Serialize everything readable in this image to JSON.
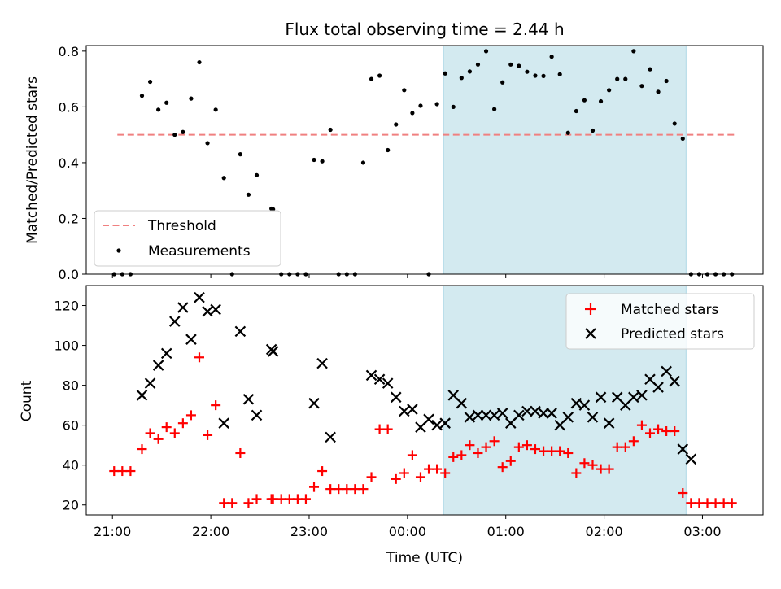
{
  "chart_data": [
    {
      "type": "scatter",
      "title": "Flux total observing time = 2.44 h",
      "xlabel": "",
      "ylabel": "Matched/Predicted stars",
      "xlim": [
        "20:44",
        "03:37"
      ],
      "ylim": [
        0,
        0.82
      ],
      "yticks": [
        0,
        0.2,
        0.4,
        0.6,
        0.8
      ],
      "ytick_labels": [
        "0.0",
        "0.2",
        "0.4",
        "0.6",
        "0.8"
      ],
      "highlight_span": [
        "00:22",
        "02:50"
      ],
      "highlight_color": "#d3eaf0",
      "threshold": {
        "name": "Threshold",
        "y": 0.5,
        "x_range": [
          "21:03",
          "03:20"
        ],
        "color": "#f08080"
      },
      "legend": {
        "position": "lower-left",
        "entries": [
          "Threshold",
          "Measurements"
        ]
      },
      "series": [
        {
          "name": "Measurements",
          "color": "#000000",
          "x": [
            "21:01",
            "21:06",
            "21:11",
            "21:18",
            "21:23",
            "21:28",
            "21:33",
            "21:38",
            "21:43",
            "21:48",
            "21:53",
            "21:58",
            "22:03",
            "22:08",
            "22:13",
            "22:18",
            "22:23",
            "22:28",
            "22:37",
            "22:38",
            "22:43",
            "22:48",
            "22:53",
            "22:58",
            "23:03",
            "23:08",
            "23:13",
            "23:18",
            "23:23",
            "23:28",
            "23:33",
            "23:38",
            "23:43",
            "23:48",
            "23:53",
            "23:58",
            "00:03",
            "00:08",
            "00:13",
            "00:18",
            "00:23",
            "00:28",
            "00:33",
            "00:38",
            "00:43",
            "00:48",
            "00:53",
            "00:58",
            "01:03",
            "01:08",
            "01:13",
            "01:18",
            "01:23",
            "01:28",
            "01:33",
            "01:38",
            "01:43",
            "01:48",
            "01:53",
            "01:58",
            "02:03",
            "02:08",
            "02:13",
            "02:18",
            "02:23",
            "02:28",
            "02:33",
            "02:38",
            "02:43",
            "02:48",
            "02:53",
            "02:58",
            "03:03",
            "03:08",
            "03:13",
            "03:18"
          ],
          "y": [
            0,
            0,
            0,
            0.64,
            0.69,
            0.59,
            0.615,
            0.5,
            0.51,
            0.63,
            0.76,
            0.47,
            0.59,
            0.345,
            0,
            0.43,
            0.285,
            0.355,
            0.235,
            0.233,
            0,
            0,
            0,
            0,
            0.41,
            0.405,
            0.518,
            0,
            0,
            0,
            0.4,
            0.7,
            0.712,
            0.445,
            0.537,
            0.66,
            0.578,
            0.604,
            0,
            0.61,
            0.72,
            0.6,
            0.704,
            0.727,
            0.752,
            0.8,
            0.592,
            0.688,
            0.752,
            0.747,
            0.726,
            0.712,
            0.711,
            0.78,
            0.717,
            0.507,
            0.585,
            0.624,
            0.515,
            0.62,
            0.66,
            0.7,
            0.7,
            0.8,
            0.675,
            0.735,
            0.654,
            0.693,
            0.54,
            0.486,
            0,
            0,
            0,
            0,
            0,
            0
          ]
        }
      ]
    },
    {
      "type": "scatter",
      "title": "",
      "xlabel": "Time (UTC)",
      "ylabel": "Count",
      "xlim": [
        "20:44",
        "03:37"
      ],
      "ylim": [
        15,
        130
      ],
      "yticks": [
        20,
        40,
        60,
        80,
        100,
        120
      ],
      "ytick_labels": [
        "20",
        "40",
        "60",
        "80",
        "100",
        "120"
      ],
      "xticks": [
        "21:00",
        "22:00",
        "23:00",
        "00:00",
        "01:00",
        "02:00",
        "03:00"
      ],
      "xtick_labels": [
        "21:00",
        "22:00",
        "23:00",
        "00:00",
        "01:00",
        "02:00",
        "03:00"
      ],
      "highlight_span": [
        "00:22",
        "02:50"
      ],
      "highlight_color": "#d3eaf0",
      "legend": {
        "position": "top-right",
        "entries": [
          "Matched stars",
          "Predicted stars"
        ]
      },
      "series": [
        {
          "name": "Matched stars",
          "marker": "+",
          "color": "#ff0000",
          "x": [
            "21:01",
            "21:06",
            "21:11",
            "21:18",
            "21:23",
            "21:28",
            "21:33",
            "21:38",
            "21:43",
            "21:48",
            "21:53",
            "21:58",
            "22:03",
            "22:08",
            "22:13",
            "22:18",
            "22:23",
            "22:28",
            "22:37",
            "22:38",
            "22:43",
            "22:48",
            "22:53",
            "22:58",
            "23:03",
            "23:08",
            "23:13",
            "23:18",
            "23:23",
            "23:28",
            "23:33",
            "23:38",
            "23:43",
            "23:48",
            "23:53",
            "23:58",
            "00:03",
            "00:08",
            "00:13",
            "00:18",
            "00:23",
            "00:28",
            "00:33",
            "00:38",
            "00:43",
            "00:48",
            "00:53",
            "00:58",
            "01:03",
            "01:08",
            "01:13",
            "01:18",
            "01:23",
            "01:28",
            "01:33",
            "01:38",
            "01:43",
            "01:48",
            "01:53",
            "01:58",
            "02:03",
            "02:08",
            "02:13",
            "02:18",
            "02:23",
            "02:28",
            "02:33",
            "02:38",
            "02:43",
            "02:48",
            "02:53",
            "02:58",
            "03:03",
            "03:08",
            "03:13",
            "03:18"
          ],
          "y": [
            37,
            37,
            37,
            48,
            56,
            53,
            59,
            56,
            61,
            65,
            94,
            55,
            70,
            21,
            21,
            46,
            21,
            23,
            23,
            23,
            23,
            23,
            23,
            23,
            29,
            37,
            28,
            28,
            28,
            28,
            28,
            34,
            58,
            58,
            33,
            36,
            45,
            34,
            38,
            38,
            36,
            44,
            45,
            50,
            46,
            49,
            52,
            39,
            42,
            49,
            50,
            48,
            47,
            47,
            47,
            46,
            36,
            41,
            40,
            38,
            38,
            49,
            49,
            52,
            60,
            56,
            58,
            57,
            57,
            26,
            21,
            21,
            21,
            21,
            21,
            21
          ]
        },
        {
          "name": "Predicted stars",
          "marker": "x",
          "color": "#000000",
          "x": [
            "21:18",
            "21:23",
            "21:28",
            "21:33",
            "21:38",
            "21:43",
            "21:48",
            "21:53",
            "21:58",
            "22:03",
            "22:08",
            "22:18",
            "22:23",
            "22:28",
            "22:37",
            "22:38",
            "23:03",
            "23:08",
            "23:13",
            "23:38",
            "23:43",
            "23:48",
            "23:53",
            "23:58",
            "00:03",
            "00:08",
            "00:13",
            "00:18",
            "00:23",
            "00:28",
            "00:33",
            "00:38",
            "00:43",
            "00:48",
            "00:53",
            "00:58",
            "01:03",
            "01:08",
            "01:13",
            "01:18",
            "01:23",
            "01:28",
            "01:33",
            "01:38",
            "01:43",
            "01:48",
            "01:53",
            "01:58",
            "02:03",
            "02:08",
            "02:13",
            "02:18",
            "02:23",
            "02:28",
            "02:33",
            "02:38",
            "02:43",
            "02:48",
            "02:53"
          ],
          "y": [
            75,
            81,
            90,
            96,
            112,
            119,
            103,
            124,
            117,
            118,
            61,
            107,
            73,
            65,
            98,
            97,
            71,
            91,
            54,
            85,
            83,
            81,
            74,
            67,
            68,
            59,
            63,
            60,
            61,
            75,
            71,
            64,
            65,
            65,
            65,
            66,
            61,
            65,
            67,
            67,
            66,
            66,
            60,
            64,
            71,
            70,
            64,
            74,
            61,
            74,
            70,
            74,
            75,
            83,
            79,
            87,
            82,
            48,
            43
          ]
        }
      ]
    }
  ]
}
